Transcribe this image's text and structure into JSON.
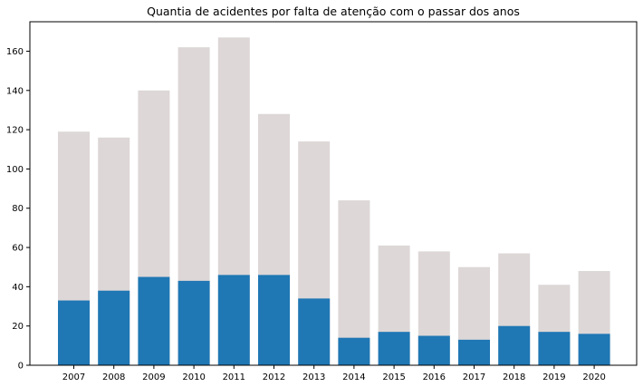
{
  "chart_data": {
    "type": "bar",
    "title": "Quantia de acidentes por falta de atenção com o passar dos anos",
    "xlabel": "",
    "ylabel": "",
    "categories": [
      "2007",
      "2008",
      "2009",
      "2010",
      "2011",
      "2012",
      "2013",
      "2014",
      "2015",
      "2016",
      "2017",
      "2018",
      "2019",
      "2020"
    ],
    "series": [
      {
        "values": [
          119,
          116,
          140,
          162,
          167,
          128,
          114,
          84,
          61,
          58,
          50,
          57,
          41,
          48
        ],
        "color": "#ddd7d7"
      },
      {
        "values": [
          33,
          38,
          45,
          43,
          46,
          46,
          34,
          14,
          17,
          15,
          13,
          20,
          17,
          16
        ],
        "color": "#1f77b4"
      }
    ],
    "overlay": true,
    "ylim": [
      0,
      175
    ],
    "yticks": [
      0,
      20,
      40,
      60,
      80,
      100,
      120,
      140,
      160
    ],
    "grid": false,
    "legend": "none"
  }
}
